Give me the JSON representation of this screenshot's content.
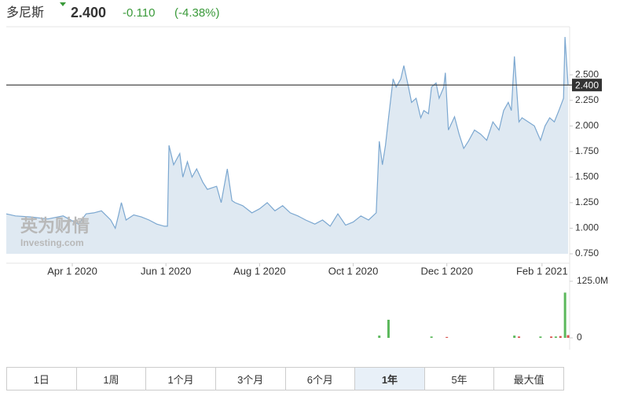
{
  "header": {
    "name": "多尼斯",
    "price": "2.400",
    "change": "-0.110",
    "change_pct": "(-4.38%)"
  },
  "watermark": {
    "brand": "英为财情",
    "site": "Investing.com"
  },
  "chart_data": [
    {
      "type": "line",
      "color": "#7ba7d0",
      "fill": "#dfe9f2",
      "x": [
        0,
        6,
        16,
        27,
        37,
        47,
        52,
        57,
        62,
        68,
        71,
        73,
        75,
        78,
        83,
        88,
        93,
        98,
        103,
        105,
        106,
        109,
        113,
        115,
        118,
        121,
        124,
        128,
        131,
        137,
        140,
        144,
        147,
        149,
        154,
        160,
        165,
        170,
        175,
        180,
        185,
        190,
        195,
        201,
        206,
        211,
        216,
        221,
        226,
        231,
        236,
        241,
        243,
        245,
        247,
        249,
        252,
        254,
        257,
        259,
        262,
        264,
        267,
        270,
        272,
        275,
        277,
        280,
        282,
        285,
        286,
        288,
        292,
        295,
        298,
        301,
        305,
        309,
        313,
        317,
        321,
        324,
        327,
        329,
        331,
        334,
        336,
        340,
        344,
        348,
        351,
        354,
        357,
        360,
        363,
        364,
        366
      ],
      "values": [
        1.14,
        1.12,
        1.11,
        1.09,
        1.12,
        1.04,
        1.14,
        1.15,
        1.17,
        1.08,
        1.0,
        1.12,
        1.25,
        1.08,
        1.13,
        1.11,
        1.08,
        1.04,
        1.02,
        1.02,
        1.81,
        1.62,
        1.73,
        1.5,
        1.65,
        1.5,
        1.58,
        1.45,
        1.38,
        1.41,
        1.25,
        1.58,
        1.27,
        1.25,
        1.22,
        1.15,
        1.19,
        1.25,
        1.17,
        1.22,
        1.15,
        1.12,
        1.08,
        1.04,
        1.08,
        1.02,
        1.14,
        1.03,
        1.06,
        1.12,
        1.08,
        1.15,
        1.85,
        1.62,
        1.81,
        2.08,
        2.46,
        2.38,
        2.46,
        2.59,
        2.38,
        2.23,
        2.27,
        2.08,
        2.15,
        2.12,
        2.38,
        2.42,
        2.27,
        2.38,
        2.52,
        1.96,
        2.09,
        1.92,
        1.78,
        1.85,
        1.96,
        1.92,
        1.86,
        2.04,
        1.96,
        2.15,
        2.23,
        2.15,
        2.68,
        2.04,
        2.08,
        2.04,
        2.0,
        1.86,
        2.0,
        2.08,
        2.04,
        2.15,
        2.27,
        2.87,
        2.4
      ],
      "xlim": [
        0,
        367
      ],
      "ylim": [
        0.75,
        2.97
      ],
      "xticks": [
        {
          "value": 43,
          "label": "Apr 1 2020"
        },
        {
          "value": 104,
          "label": "Jun 1 2020"
        },
        {
          "value": 165,
          "label": "Aug 1 2020"
        },
        {
          "value": 226,
          "label": "Oct 1 2020"
        },
        {
          "value": 287,
          "label": "Dec 1 2020"
        },
        {
          "value": 349,
          "label": "Feb 1 2021"
        }
      ],
      "yticks": [
        {
          "value": 0.75,
          "label": "0.750"
        },
        {
          "value": 1.0,
          "label": "1.000"
        },
        {
          "value": 1.25,
          "label": "1.250"
        },
        {
          "value": 1.5,
          "label": "1.500"
        },
        {
          "value": 1.75,
          "label": "1.750"
        },
        {
          "value": 2.0,
          "label": "2.000"
        },
        {
          "value": 2.25,
          "label": "2.250"
        },
        {
          "value": 2.5,
          "label": "2.500"
        }
      ],
      "price_line": {
        "value": 2.4,
        "label": "2.400"
      }
    },
    {
      "type": "bar",
      "x": [
        243,
        249,
        277,
        287,
        331,
        334,
        348,
        355,
        358,
        361,
        364,
        366
      ],
      "values": [
        5,
        40,
        3,
        2,
        5,
        3,
        3,
        3,
        3,
        4,
        100,
        6
      ],
      "colors": [
        "#5cb85c",
        "#5cb85c",
        "#5cb85c",
        "#d9534f",
        "#5cb85c",
        "#d9534f",
        "#5cb85c",
        "#d9534f",
        "#5cb85c",
        "#d9534f",
        "#5cb85c",
        "#d9534f"
      ],
      "xlim": [
        0,
        367
      ],
      "ylim": [
        0,
        125
      ],
      "yticks": [
        0,
        {
          "value": 125,
          "label": "125.0M"
        }
      ]
    }
  ],
  "tabs": [
    "1日",
    "1周",
    "1个月",
    "3个月",
    "6个月",
    "1年",
    "5年",
    "最大值"
  ],
  "active_tab": 5
}
